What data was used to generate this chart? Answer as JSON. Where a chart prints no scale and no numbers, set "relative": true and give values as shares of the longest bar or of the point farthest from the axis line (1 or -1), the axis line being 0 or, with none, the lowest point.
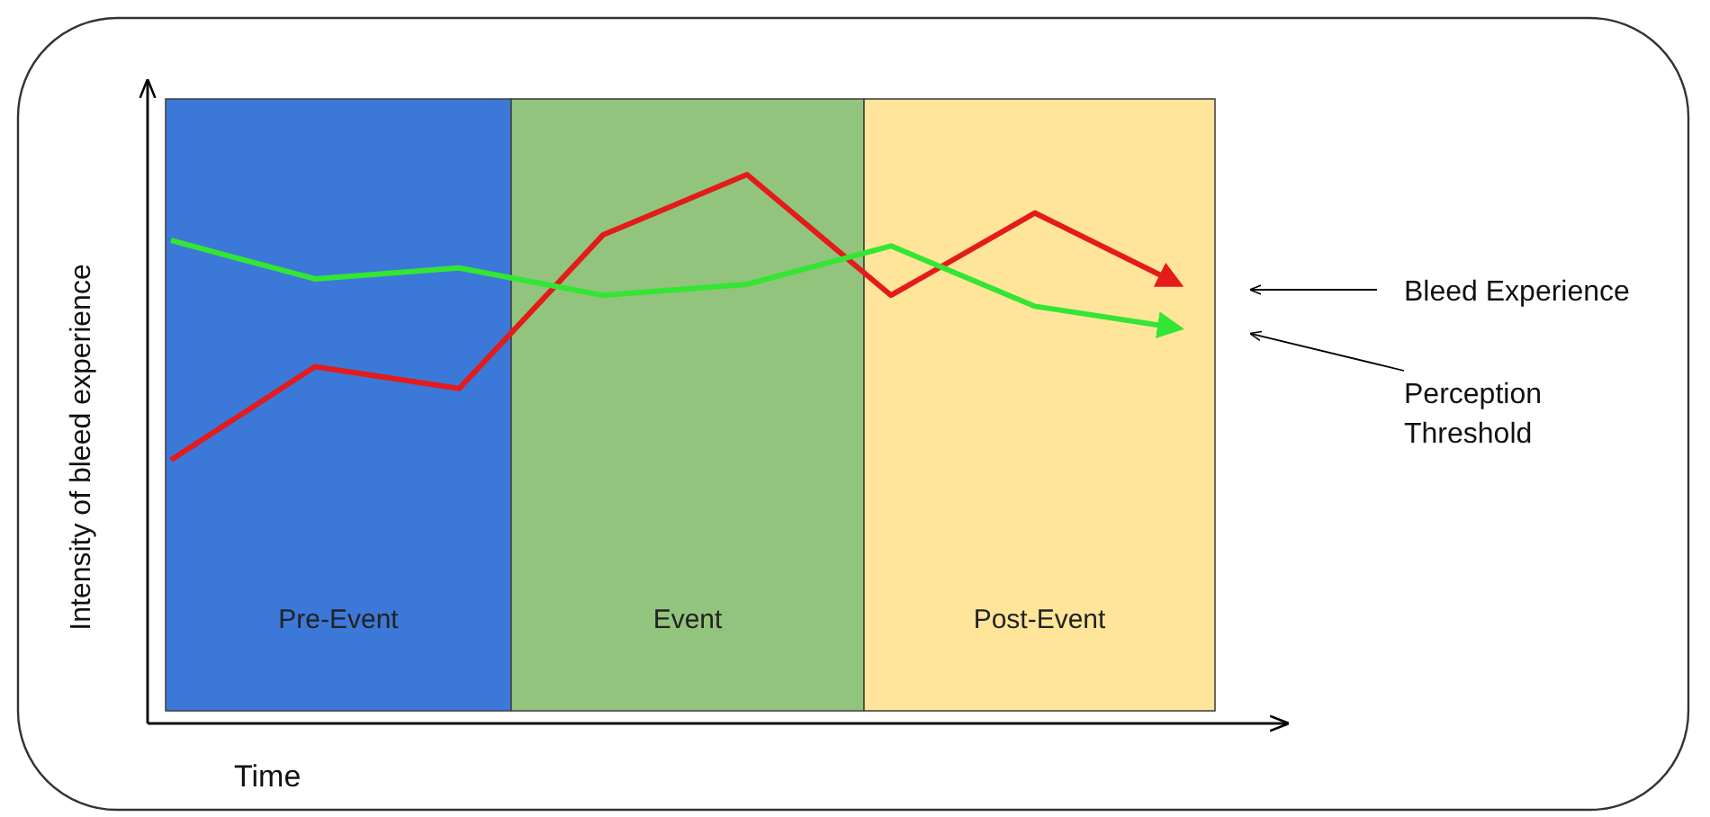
{
  "chart_data": {
    "type": "line",
    "relative": true,
    "xlabel": "Time",
    "ylabel": "Intensity of bleed experience",
    "categories": [
      null,
      null,
      null,
      null,
      null,
      null,
      null,
      null
    ],
    "legend": "right",
    "marker": "none",
    "line_style": "solid",
    "series": [
      {
        "name": "Bleed Experience",
        "color": "#e31b1b",
        "values": [
          0.48,
          0.65,
          0.61,
          0.89,
          1,
          0.78,
          0.93,
          0.8
        ]
      },
      {
        "name": "Perception Threshold",
        "color": "#33e633",
        "values": [
          0.88,
          0.81,
          0.83,
          0.78,
          0.8,
          0.87,
          0.76,
          0.72
        ]
      }
    ],
    "annotations": [
      "Pre-Event",
      "Event",
      "Post-Event"
    ]
  }
}
